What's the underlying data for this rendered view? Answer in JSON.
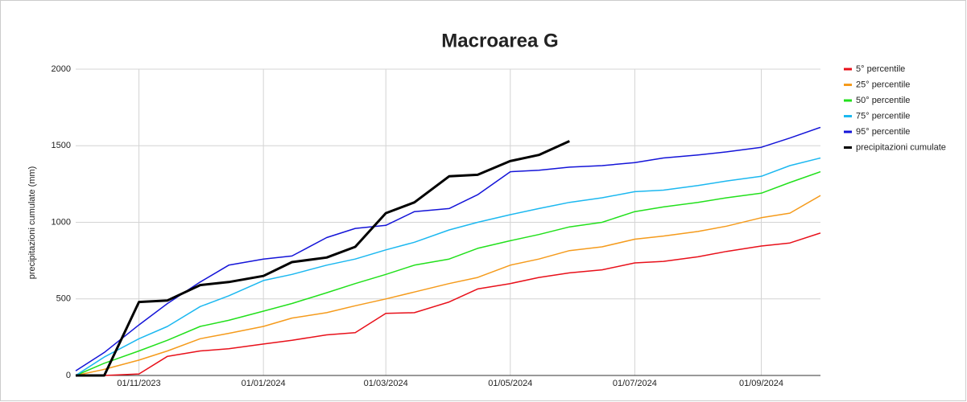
{
  "chart_data": {
    "type": "line",
    "title": "Macroarea G",
    "y_label": "precipitazioni cumulate (mm)",
    "x": [
      "01/10/2023",
      "15/10/2023",
      "01/11/2023",
      "15/11/2023",
      "01/12/2023",
      "15/12/2023",
      "01/01/2024",
      "15/01/2024",
      "01/02/2024",
      "15/02/2024",
      "01/03/2024",
      "15/03/2024",
      "01/04/2024",
      "15/04/2024",
      "01/05/2024",
      "15/05/2024",
      "30/05/2024",
      "15/06/2024",
      "01/07/2024",
      "15/07/2024",
      "01/08/2024",
      "15/08/2024",
      "01/09/2024",
      "15/09/2024",
      "30/09/2024"
    ],
    "series": [
      {
        "name": "5° percentile",
        "color": "#e8101a",
        "values": [
          0,
          0,
          10,
          125,
          160,
          175,
          205,
          230,
          265,
          280,
          405,
          410,
          480,
          565,
          600,
          640,
          670,
          690,
          735,
          745,
          775,
          810,
          845,
          865,
          930
        ]
      },
      {
        "name": "25° percentile",
        "color": "#f59b1c",
        "values": [
          0,
          40,
          100,
          160,
          240,
          275,
          320,
          375,
          410,
          455,
          500,
          545,
          600,
          640,
          720,
          760,
          815,
          840,
          890,
          910,
          940,
          975,
          1030,
          1060,
          1175
        ]
      },
      {
        "name": "50° percentile",
        "color": "#22e01c",
        "values": [
          0,
          80,
          160,
          230,
          320,
          360,
          420,
          470,
          540,
          600,
          660,
          720,
          760,
          830,
          880,
          920,
          970,
          1000,
          1070,
          1100,
          1130,
          1160,
          1190,
          1260,
          1330
        ]
      },
      {
        "name": "75° percentile",
        "color": "#1cb8f0",
        "values": [
          0,
          120,
          240,
          320,
          450,
          520,
          620,
          660,
          720,
          760,
          820,
          870,
          950,
          1000,
          1050,
          1090,
          1130,
          1160,
          1200,
          1210,
          1240,
          1270,
          1300,
          1370,
          1420
        ]
      },
      {
        "name": "95° percentile",
        "color": "#1414d8",
        "values": [
          30,
          150,
          330,
          470,
          610,
          720,
          760,
          780,
          900,
          960,
          980,
          1070,
          1090,
          1180,
          1330,
          1340,
          1360,
          1370,
          1390,
          1420,
          1440,
          1460,
          1490,
          1550,
          1620
        ]
      },
      {
        "name": "precipitazioni cumulate",
        "color": "#000000",
        "values": [
          0,
          0,
          480,
          490,
          590,
          610,
          650,
          740,
          770,
          840,
          1060,
          1130,
          1300,
          1310,
          1400,
          1440,
          1530,
          null,
          null,
          null,
          null,
          null,
          null,
          null,
          null
        ]
      }
    ],
    "xlim": [
      "01/10/2023",
      "30/09/2024"
    ],
    "xticks": [
      "01/11/2023",
      "01/01/2024",
      "01/03/2024",
      "01/05/2024",
      "01/07/2024",
      "01/09/2024"
    ],
    "ylim": [
      0,
      2000
    ],
    "yticks": [
      0,
      500,
      1000,
      1500,
      2000
    ],
    "grid": true,
    "legend": "right"
  }
}
